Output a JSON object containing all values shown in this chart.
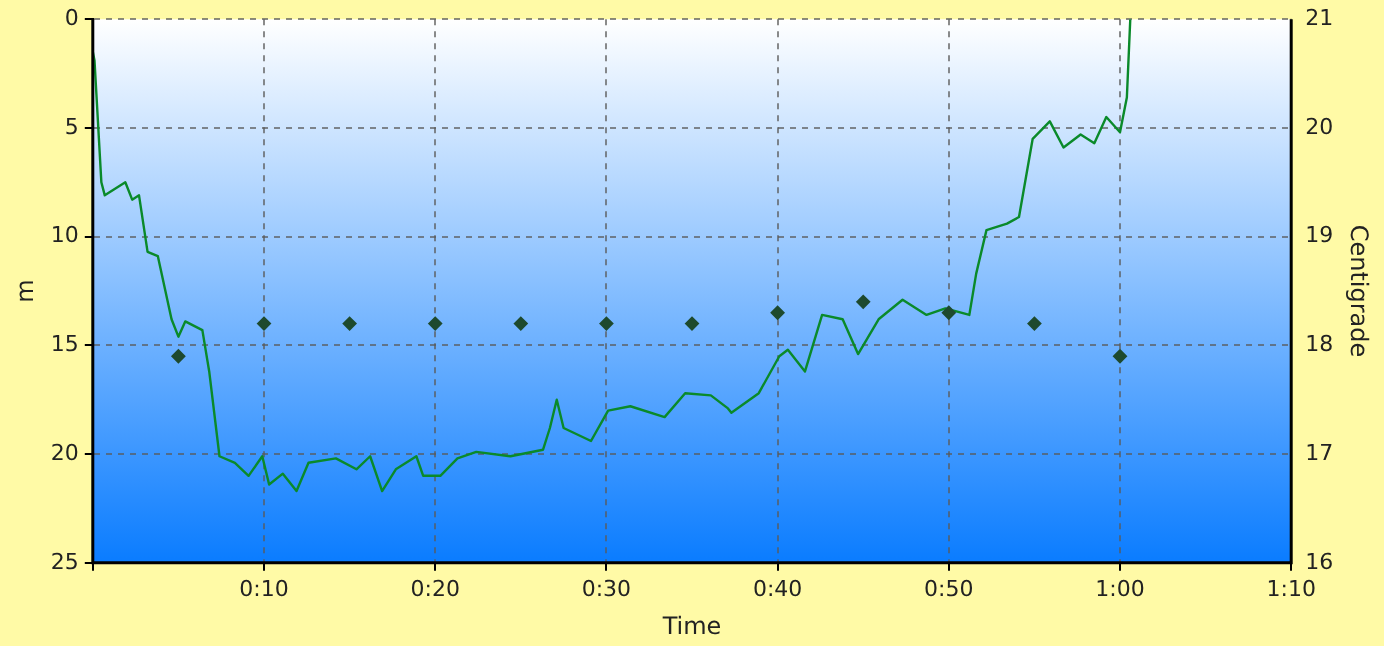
{
  "chart_data": {
    "type": "line",
    "xlabel": "Time",
    "ylabel": "m",
    "y2label": "Centigrade",
    "xlim": [
      0,
      70
    ],
    "xticks": [
      {
        "value": 0,
        "label": null
      },
      {
        "value": 10,
        "label": "0:10"
      },
      {
        "value": 20,
        "label": "0:20"
      },
      {
        "value": 30,
        "label": "0:30"
      },
      {
        "value": 40,
        "label": "0:40"
      },
      {
        "value": 50,
        "label": "0:50"
      },
      {
        "value": 60,
        "label": "1:00"
      },
      {
        "value": 70,
        "label": "1:10"
      }
    ],
    "ylim": [
      25,
      0
    ],
    "yticks": [
      0,
      5,
      10,
      15,
      20,
      25
    ],
    "y2lim": [
      16,
      21
    ],
    "y2ticks": [
      16,
      17,
      18,
      19,
      20,
      21
    ],
    "grid": true,
    "legend": false,
    "series": [
      {
        "color": "#0a8a2a",
        "marker": "none",
        "x": [
          0,
          0.1,
          0.5,
          0.7,
          1.9,
          2.3,
          2.7,
          3.2,
          3.8,
          4.6,
          5.0,
          5.4,
          6.4,
          6.8,
          7.4,
          8.3,
          9.1,
          9.9,
          10.3,
          11.1,
          11.9,
          12.6,
          14.2,
          15.4,
          16.2,
          16.9,
          17.7,
          18.9,
          19.3,
          20.3,
          21.3,
          22.4,
          24.4,
          26.3,
          26.7,
          27.1,
          27.5,
          29.1,
          30.1,
          31.4,
          33.4,
          34.6,
          36.1,
          37.1,
          37.3,
          38.9,
          40.1,
          40.6,
          41.6,
          42.6,
          43.8,
          44.7,
          45.9,
          47.3,
          48.7,
          49.8,
          51.2,
          51.6,
          52.2,
          53.4,
          54.1,
          54.9,
          55.9,
          56.7,
          57.7,
          58.5,
          59.2,
          60.0,
          60.4,
          60.6
        ],
        "values": [
          1.5,
          1.9,
          7.5,
          8.1,
          7.5,
          8.3,
          8.1,
          10.7,
          10.9,
          13.8,
          14.6,
          13.9,
          14.3,
          16.2,
          20.1,
          20.4,
          21.0,
          20.1,
          21.4,
          20.9,
          21.7,
          20.4,
          20.2,
          20.7,
          20.1,
          21.7,
          20.7,
          20.1,
          21.0,
          21.0,
          20.2,
          19.9,
          20.1,
          19.8,
          18.8,
          17.5,
          18.8,
          19.4,
          18.0,
          17.8,
          18.3,
          17.2,
          17.3,
          17.9,
          18.1,
          17.2,
          15.5,
          15.2,
          16.2,
          13.6,
          13.8,
          15.4,
          13.8,
          12.9,
          13.6,
          13.3,
          13.6,
          11.7,
          9.7,
          9.4,
          9.1,
          5.5,
          4.7,
          5.9,
          5.3,
          5.7,
          4.5,
          5.2,
          3.6,
          0
        ]
      },
      {
        "type": "scatter",
        "axis": "y2",
        "color": "#1e4a2e",
        "marker": "diamond",
        "x": [
          5,
          10,
          15,
          20,
          25,
          30,
          35,
          40,
          45,
          50,
          55,
          60
        ],
        "values": [
          17.9,
          18.2,
          18.2,
          18.2,
          18.2,
          18.2,
          18.2,
          18.3,
          18.4,
          18.3,
          18.2,
          17.9
        ]
      }
    ]
  }
}
